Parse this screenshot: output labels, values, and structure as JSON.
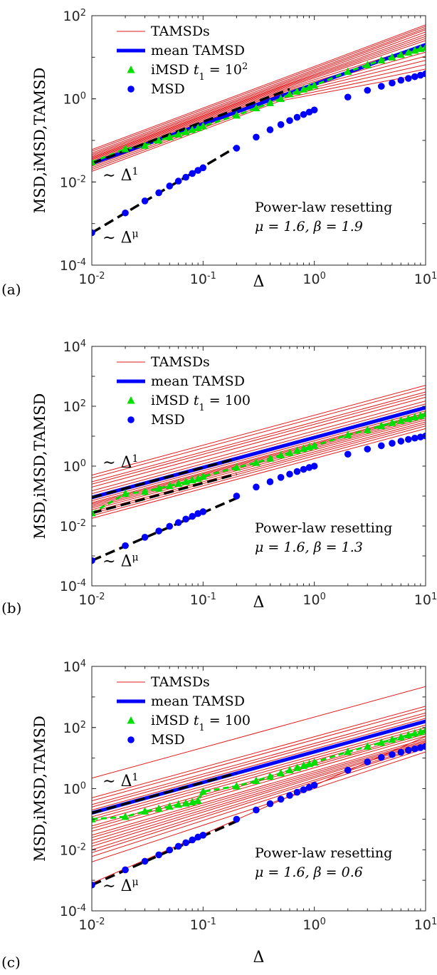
{
  "chart_data": [
    {
      "type": "line",
      "panel": "(a)",
      "xscale": "log",
      "yscale": "log",
      "xlim": [
        0.01,
        10
      ],
      "ylim": [
        0.0001,
        100
      ],
      "xticks": [
        0.01,
        0.1,
        1,
        10
      ],
      "xtick_labels": [
        {
          "base": "10",
          "exp": "-2"
        },
        {
          "base": "10",
          "exp": "-1"
        },
        {
          "base": "10",
          "exp": "0"
        },
        {
          "base": "10",
          "exp": "1"
        }
      ],
      "yticks": [
        0.0001,
        0.01,
        1,
        100
      ],
      "ytick_labels": [
        {
          "base": "10",
          "exp": "-4"
        },
        {
          "base": "10",
          "exp": "-2"
        },
        {
          "base": "10",
          "exp": "0"
        },
        {
          "base": "10",
          "exp": "2"
        }
      ],
      "xlabel": "Δ",
      "ylabel": "MSD,iMSD,TAMSD",
      "legend": {
        "position": "top-left",
        "entries": [
          {
            "label": "TAMSDs",
            "color": "#e31a1c",
            "marker": "thin-line"
          },
          {
            "label": "mean TAMSD",
            "color": "#0000ff",
            "marker": "thick-line"
          },
          {
            "label_main": "iMSD ",
            "label_math": "t",
            "label_sub": "1",
            "label_tail": " = 10",
            "label_sup": "2",
            "color": "#00e000",
            "marker": "triangle"
          },
          {
            "label": "MSD",
            "color": "#0000ff",
            "marker": "circle"
          }
        ]
      },
      "annotation": {
        "line1": "Power-law resetting",
        "line2": "μ = 1.6, β = 1.9"
      },
      "scaling_labels": [
        {
          "base": "∼ Δ",
          "exp": "1",
          "x": 0.0125,
          "y": 0.011
        },
        {
          "base": "∼ Δ",
          "exp": "μ",
          "x": 0.0125,
          "y": 0.00035
        }
      ],
      "tamsd_lines": {
        "slope": 1,
        "y_at_xmin": [
          0.018,
          0.02,
          0.022,
          0.024,
          0.026,
          0.028,
          0.03,
          0.032,
          0.034,
          0.036,
          0.038,
          0.04,
          0.043,
          0.046,
          0.05,
          0.055,
          0.06
        ],
        "bend_from": 0.5,
        "bend_to_slope": [
          0.5,
          0.55,
          0.6,
          0.65,
          0.7,
          0.75,
          0.8,
          0.85,
          0.9,
          0.92,
          0.94,
          0.96,
          0.98,
          1,
          1,
          1,
          1
        ],
        "y_at_xmin_note": "y at x=0.01 (fan of individual traces)"
      },
      "mean_tamsd": {
        "x": [
          0.01,
          10
        ],
        "y": [
          0.028,
          20
        ]
      },
      "dashed_lines": [
        {
          "x": [
            0.01,
            0.6
          ],
          "y": [
            0.028,
            1.7
          ]
        },
        {
          "x": [
            0.01,
            0.2
          ],
          "y": [
            0.0006,
            0.07
          ]
        }
      ],
      "imsd": {
        "x": [
          0.01,
          0.02,
          0.03,
          0.04,
          0.05,
          0.06,
          0.07,
          0.08,
          0.09,
          0.1,
          0.2,
          0.3,
          0.4,
          0.5,
          0.6,
          0.7,
          0.8,
          0.9,
          1,
          2,
          3,
          4,
          5,
          6,
          7,
          8,
          9,
          10
        ],
        "y": [
          0.03,
          0.062,
          0.075,
          0.1,
          0.12,
          0.14,
          0.16,
          0.18,
          0.2,
          0.22,
          0.4,
          0.6,
          0.8,
          1.0,
          1.3,
          1.5,
          1.7,
          1.9,
          2.1,
          4.5,
          6.5,
          8.5,
          10,
          11.5,
          13,
          14.5,
          16,
          17
        ]
      },
      "msd": {
        "x": [
          0.01,
          0.02,
          0.03,
          0.04,
          0.05,
          0.06,
          0.07,
          0.08,
          0.09,
          0.1,
          0.2,
          0.3,
          0.4,
          0.5,
          0.6,
          0.7,
          0.8,
          0.9,
          1,
          2,
          3,
          4,
          5,
          6,
          7,
          8,
          9,
          10
        ],
        "y": [
          0.0006,
          0.0018,
          0.0035,
          0.0055,
          0.008,
          0.0105,
          0.013,
          0.016,
          0.019,
          0.022,
          0.065,
          0.12,
          0.18,
          0.24,
          0.3,
          0.36,
          0.42,
          0.48,
          0.54,
          1.1,
          1.6,
          2.0,
          2.4,
          2.8,
          3.1,
          3.4,
          3.7,
          4.0
        ]
      }
    },
    {
      "type": "line",
      "panel": "(b)",
      "xscale": "log",
      "yscale": "log",
      "xlim": [
        0.01,
        10
      ],
      "ylim": [
        0.0001,
        10000
      ],
      "xticks": [
        0.01,
        0.1,
        1,
        10
      ],
      "xtick_labels": [
        {
          "base": "10",
          "exp": "-2"
        },
        {
          "base": "10",
          "exp": "-1"
        },
        {
          "base": "10",
          "exp": "0"
        },
        {
          "base": "10",
          "exp": "1"
        }
      ],
      "yticks": [
        0.0001,
        0.01,
        1,
        100,
        10000
      ],
      "ytick_labels": [
        {
          "base": "10",
          "exp": "-4"
        },
        {
          "base": "10",
          "exp": "-2"
        },
        {
          "base": "10",
          "exp": "0"
        },
        {
          "base": "10",
          "exp": "2"
        },
        {
          "base": "10",
          "exp": "4"
        }
      ],
      "xlabel": "Δ",
      "ylabel": "MSD,iMSD,TAMSD",
      "legend": {
        "position": "top-left",
        "entries": [
          {
            "label": "TAMSDs",
            "color": "#e31a1c",
            "marker": "thin-line"
          },
          {
            "label": "mean TAMSD",
            "color": "#0000ff",
            "marker": "thick-line"
          },
          {
            "label_main": "iMSD ",
            "label_math": "t",
            "label_sub": "1",
            "label_tail": " = 100",
            "label_sup": "",
            "color": "#00e000",
            "marker": "triangle"
          },
          {
            "label": "MSD",
            "color": "#0000ff",
            "marker": "circle"
          }
        ]
      },
      "annotation": {
        "line1": "Power-law resetting",
        "line2": "μ = 1.6, β = 1.3"
      },
      "scaling_labels": [
        {
          "base": "∼ Δ",
          "exp": "1",
          "x": 0.0125,
          "y": 0.9
        },
        {
          "base": "∼ Δ",
          "exp": "μ",
          "x": 0.0125,
          "y": 0.00045
        }
      ],
      "tamsd_lines": {
        "slope": 1,
        "y_at_xmin": [
          0.018,
          0.022,
          0.026,
          0.03,
          0.035,
          0.04,
          0.045,
          0.05,
          0.055,
          0.06,
          0.07,
          0.08,
          0.09,
          0.1,
          0.12,
          0.15,
          0.2,
          0.25,
          0.3,
          0.4,
          0.5
        ],
        "bend_from": 100,
        "bend_to_slope": [],
        "y_at_xmin_note": "parallel fan"
      },
      "mean_tamsd": {
        "x": [
          0.01,
          10
        ],
        "y": [
          0.09,
          90
        ]
      },
      "dashed_lines": [
        {
          "x": [
            0.01,
            0.2
          ],
          "y": [
            0.09,
            1.8
          ]
        },
        {
          "x": [
            0.01,
            0.2
          ],
          "y": [
            0.027,
            0.54
          ]
        },
        {
          "x": [
            0.01,
            0.2
          ],
          "y": [
            0.0007,
            0.085
          ]
        }
      ],
      "imsd": {
        "x": [
          0.01,
          0.02,
          0.03,
          0.04,
          0.05,
          0.06,
          0.07,
          0.08,
          0.09,
          0.1,
          0.2,
          0.3,
          0.4,
          0.5,
          0.6,
          0.7,
          0.8,
          0.9,
          1,
          2,
          3,
          4,
          5,
          6,
          7,
          8,
          9,
          10
        ],
        "y": [
          0.027,
          0.12,
          0.14,
          0.18,
          0.22,
          0.26,
          0.3,
          0.34,
          0.38,
          0.45,
          0.9,
          1.3,
          1.8,
          2.3,
          2.8,
          3.3,
          3.8,
          4.3,
          4.8,
          11,
          16,
          22,
          28,
          33,
          38,
          43,
          48,
          55
        ]
      },
      "msd": {
        "x": [
          0.01,
          0.02,
          0.03,
          0.04,
          0.05,
          0.06,
          0.07,
          0.08,
          0.09,
          0.1,
          0.2,
          0.3,
          0.4,
          0.5,
          0.6,
          0.7,
          0.8,
          0.9,
          1,
          2,
          3,
          4,
          5,
          6,
          7,
          8,
          9,
          10
        ],
        "y": [
          0.0007,
          0.0022,
          0.0042,
          0.0068,
          0.0098,
          0.013,
          0.017,
          0.021,
          0.026,
          0.03,
          0.1,
          0.2,
          0.3,
          0.42,
          0.54,
          0.66,
          0.78,
          0.9,
          1.0,
          2.5,
          3.7,
          4.8,
          5.8,
          6.8,
          7.8,
          8.6,
          9.4,
          10.2
        ]
      }
    },
    {
      "type": "line",
      "panel": "(c)",
      "xscale": "log",
      "yscale": "log",
      "xlim": [
        0.01,
        10
      ],
      "ylim": [
        0.0001,
        10000
      ],
      "xticks": [
        0.01,
        0.1,
        1,
        10
      ],
      "xtick_labels": [
        {
          "base": "10",
          "exp": "-2"
        },
        {
          "base": "10",
          "exp": "-1"
        },
        {
          "base": "10",
          "exp": "0"
        },
        {
          "base": "10",
          "exp": "1"
        }
      ],
      "yticks": [
        0.0001,
        0.01,
        1,
        100,
        10000
      ],
      "ytick_labels": [
        {
          "base": "10",
          "exp": "-4"
        },
        {
          "base": "10",
          "exp": "-2"
        },
        {
          "base": "10",
          "exp": "0"
        },
        {
          "base": "10",
          "exp": "2"
        },
        {
          "base": "10",
          "exp": "4"
        }
      ],
      "xlabel": "Δ",
      "ylabel": "MSD,iMSD,TAMSD",
      "legend": {
        "position": "top-left",
        "entries": [
          {
            "label": "TAMSDs",
            "color": "#e31a1c",
            "marker": "thin-line"
          },
          {
            "label": "mean TAMSD",
            "color": "#0000ff",
            "marker": "thick-line"
          },
          {
            "label_main": "iMSD ",
            "label_math": "t",
            "label_sub": "1",
            "label_tail": " = 100",
            "label_sup": "",
            "color": "#00e000",
            "marker": "triangle"
          },
          {
            "label": "MSD",
            "color": "#0000ff",
            "marker": "circle"
          }
        ]
      },
      "annotation": {
        "line1": "Power-law resetting",
        "line2": "μ = 1.6, β = 0.6"
      },
      "scaling_labels": [
        {
          "base": "∼ Δ",
          "exp": "1",
          "x": 0.0125,
          "y": 1.2
        },
        {
          "base": "∼ Δ",
          "exp": "μ",
          "x": 0.0125,
          "y": 0.00045
        }
      ],
      "tamsd_lines": {
        "slope": 1,
        "y_at_xmin": [
          0.0008,
          0.004,
          0.006,
          0.008,
          0.01,
          0.013,
          0.016,
          0.02,
          0.025,
          0.03,
          0.04,
          0.05,
          0.06,
          0.08,
          0.1,
          0.12,
          0.15,
          0.2,
          0.25,
          0.3,
          0.4,
          0.5,
          2.2
        ],
        "bend_from": 100,
        "bend_to_slope": [],
        "slopes": [
          1.6,
          1.2,
          1.18,
          1.16,
          1.14,
          1.12,
          1.1,
          1.08,
          1.06,
          1.05,
          1.04,
          1.03,
          1.02,
          1.01,
          1,
          1,
          1,
          1,
          1,
          1,
          1,
          1,
          1
        ],
        "y_at_xmin_note": "fan, lowest line follows MSD"
      },
      "mean_tamsd": {
        "x": [
          0.01,
          10
        ],
        "y": [
          0.16,
          160
        ]
      },
      "dashed_lines": [
        {
          "x": [
            0.01,
            0.2
          ],
          "y": [
            0.16,
            3.2
          ]
        },
        {
          "x": [
            0.01,
            0.2
          ],
          "y": [
            0.0007,
            0.085
          ]
        }
      ],
      "imsd": {
        "x": [
          0.01,
          0.02,
          0.03,
          0.04,
          0.05,
          0.06,
          0.07,
          0.08,
          0.09,
          0.1,
          0.2,
          0.3,
          0.4,
          0.5,
          0.6,
          0.7,
          0.8,
          0.9,
          1,
          2,
          3,
          4,
          5,
          6,
          7,
          8,
          9,
          10
        ],
        "y": [
          0.1,
          0.12,
          0.18,
          0.22,
          0.26,
          0.3,
          0.33,
          0.36,
          0.4,
          0.8,
          1.2,
          1.8,
          2.5,
          3.2,
          4,
          4.8,
          5.6,
          6.4,
          7.2,
          16,
          24,
          32,
          40,
          48,
          56,
          64,
          72,
          80
        ]
      },
      "msd": {
        "x": [
          0.01,
          0.02,
          0.03,
          0.04,
          0.05,
          0.06,
          0.07,
          0.08,
          0.09,
          0.1,
          0.2,
          0.3,
          0.4,
          0.5,
          0.6,
          0.7,
          0.8,
          0.9,
          1,
          2,
          3,
          4,
          5,
          6,
          7,
          8,
          9,
          10
        ],
        "y": [
          0.0007,
          0.0022,
          0.0042,
          0.0068,
          0.0098,
          0.013,
          0.017,
          0.021,
          0.026,
          0.03,
          0.1,
          0.2,
          0.32,
          0.45,
          0.6,
          0.76,
          0.92,
          1.1,
          1.3,
          4,
          7.5,
          10.5,
          13,
          15.5,
          18,
          20,
          22,
          24
        ]
      }
    }
  ]
}
